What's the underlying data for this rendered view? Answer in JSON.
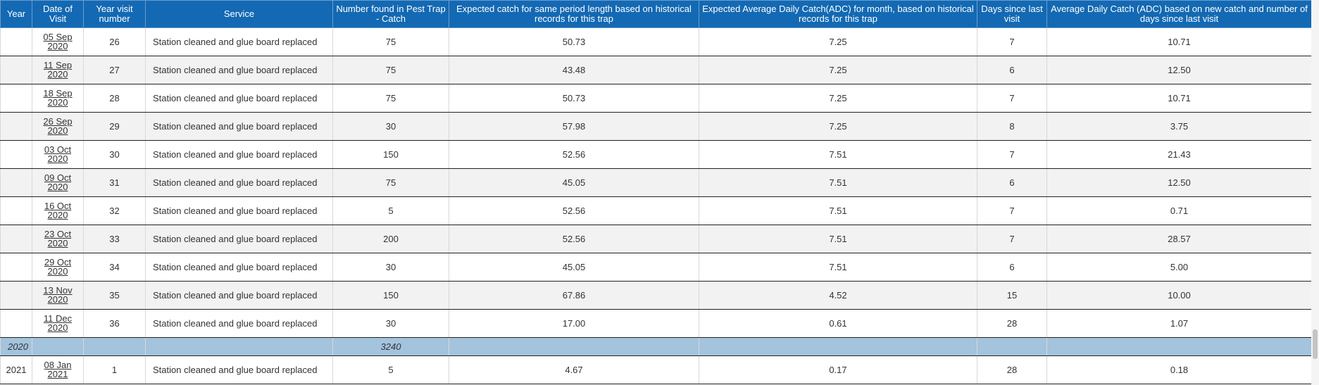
{
  "columns": [
    "Year",
    "Date of Visit",
    "Year visit number",
    "Service",
    "Number found in Pest Trap - Catch",
    "Expected catch for same period length based on historical records for this trap",
    "Expected Average Daily Catch(ADC) for month, based on historical records for this trap",
    "Days since last visit",
    "Average Daily Catch (ADC) based on new catch and number of days since last visit"
  ],
  "rows": [
    {
      "year": "",
      "date_line1": "05 Sep",
      "date_line2": "2020",
      "visit": "26",
      "service": "Station cleaned and glue board replaced",
      "catch": "75",
      "expected_catch": "50.73",
      "expected_adc": "7.25",
      "days": "7",
      "adc": "10.71"
    },
    {
      "year": "",
      "date_line1": "11 Sep",
      "date_line2": "2020",
      "visit": "27",
      "service": "Station cleaned and glue board replaced",
      "catch": "75",
      "expected_catch": "43.48",
      "expected_adc": "7.25",
      "days": "6",
      "adc": "12.50"
    },
    {
      "year": "",
      "date_line1": "18 Sep",
      "date_line2": "2020",
      "visit": "28",
      "service": "Station cleaned and glue board replaced",
      "catch": "75",
      "expected_catch": "50.73",
      "expected_adc": "7.25",
      "days": "7",
      "adc": "10.71"
    },
    {
      "year": "",
      "date_line1": "26 Sep",
      "date_line2": "2020",
      "visit": "29",
      "service": "Station cleaned and glue board replaced",
      "catch": "30",
      "expected_catch": "57.98",
      "expected_adc": "7.25",
      "days": "8",
      "adc": "3.75"
    },
    {
      "year": "",
      "date_line1": "03 Oct",
      "date_line2": "2020",
      "visit": "30",
      "service": "Station cleaned and glue board replaced",
      "catch": "150",
      "expected_catch": "52.56",
      "expected_adc": "7.51",
      "days": "7",
      "adc": "21.43"
    },
    {
      "year": "",
      "date_line1": "09 Oct",
      "date_line2": "2020",
      "visit": "31",
      "service": "Station cleaned and glue board replaced",
      "catch": "75",
      "expected_catch": "45.05",
      "expected_adc": "7.51",
      "days": "6",
      "adc": "12.50"
    },
    {
      "year": "",
      "date_line1": "16 Oct",
      "date_line2": "2020",
      "visit": "32",
      "service": "Station cleaned and glue board replaced",
      "catch": "5",
      "expected_catch": "52.56",
      "expected_adc": "7.51",
      "days": "7",
      "adc": "0.71"
    },
    {
      "year": "",
      "date_line1": "23 Oct",
      "date_line2": "2020",
      "visit": "33",
      "service": "Station cleaned and glue board replaced",
      "catch": "200",
      "expected_catch": "52.56",
      "expected_adc": "7.51",
      "days": "7",
      "adc": "28.57"
    },
    {
      "year": "",
      "date_line1": "29 Oct",
      "date_line2": "2020",
      "visit": "34",
      "service": "Station cleaned and glue board replaced",
      "catch": "30",
      "expected_catch": "45.05",
      "expected_adc": "7.51",
      "days": "6",
      "adc": "5.00"
    },
    {
      "year": "",
      "date_line1": "13 Nov",
      "date_line2": "2020",
      "visit": "35",
      "service": "Station cleaned and glue board replaced",
      "catch": "150",
      "expected_catch": "67.86",
      "expected_adc": "4.52",
      "days": "15",
      "adc": "10.00"
    },
    {
      "year": "",
      "date_line1": "11 Dec",
      "date_line2": "2020",
      "visit": "36",
      "service": "Station cleaned and glue board replaced",
      "catch": "30",
      "expected_catch": "17.00",
      "expected_adc": "0.61",
      "days": "28",
      "adc": "1.07"
    }
  ],
  "subtotal": {
    "year": "2020",
    "catch_total": "3240"
  },
  "next_rows": [
    {
      "year": "2021",
      "date_line1": "08 Jan",
      "date_line2": "2021",
      "visit": "1",
      "service": "Station cleaned and glue board replaced",
      "catch": "5",
      "expected_catch": "4.67",
      "expected_adc": "0.17",
      "days": "28",
      "adc": "0.18"
    }
  ],
  "colors": {
    "header_bg": "#1369b3",
    "subtotal_bg": "#a4c3dd",
    "alt_row_bg": "#f2f2f2"
  }
}
